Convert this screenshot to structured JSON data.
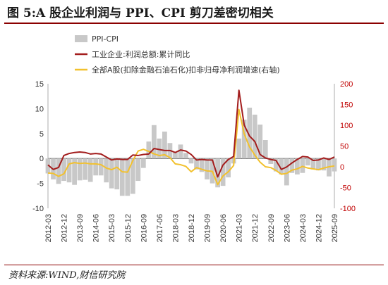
{
  "figure": {
    "title": "图 5:A 股企业利润与 PPI、CPI 剪刀差密切相关",
    "source": "资料来源:WIND,财信研究院"
  },
  "colors": {
    "ppi_cpi": "#c8c8c8",
    "industrial_profit": "#a31d1d",
    "a_share_profit": "#f2c12e",
    "left_axis": "#333333",
    "right_axis": "#c00000",
    "rule": "#8b0000"
  },
  "chart_data": {
    "type": "area",
    "x_labels": [
      "2012-03",
      "2012-12",
      "2013-09",
      "2014-06",
      "2015-03",
      "2015-12",
      "2016-09",
      "2017-06",
      "2018-03",
      "2018-12",
      "2019-09",
      "2020-06",
      "2021-03",
      "2021-12",
      "2022-09",
      "2023-06",
      "2024-03",
      "2024-12",
      "2025-09"
    ],
    "left_axis": {
      "ticks": [
        "15",
        "10",
        "5",
        "0",
        "-5",
        "-10"
      ],
      "ylim": [
        -10,
        15
      ]
    },
    "right_axis": {
      "ticks": [
        "200",
        "150",
        "100",
        "50",
        "0",
        "-50",
        "-100"
      ],
      "ylim": [
        -100,
        200
      ]
    },
    "legend_position": "top-left",
    "series": [
      {
        "name": "PPI-CPI",
        "axis": "left",
        "style": "bar",
        "points": [
          [
            "2012-03",
            -3.0
          ],
          [
            "2012-06",
            -4.2
          ],
          [
            "2012-09",
            -5.1
          ],
          [
            "2012-12",
            -4.5
          ],
          [
            "2013-03",
            -4.8
          ],
          [
            "2013-06",
            -5.3
          ],
          [
            "2013-09",
            -4.4
          ],
          [
            "2013-12",
            -4.3
          ],
          [
            "2014-03",
            -4.7
          ],
          [
            "2014-06",
            -3.4
          ],
          [
            "2014-09",
            -3.4
          ],
          [
            "2014-12",
            -4.8
          ],
          [
            "2015-03",
            -6.0
          ],
          [
            "2015-06",
            -6.2
          ],
          [
            "2015-09",
            -7.5
          ],
          [
            "2015-12",
            -7.5
          ],
          [
            "2016-03",
            -7.1
          ],
          [
            "2016-06",
            -4.5
          ],
          [
            "2016-09",
            -1.9
          ],
          [
            "2016-12",
            3.4
          ],
          [
            "2017-03",
            6.7
          ],
          [
            "2017-06",
            4.0
          ],
          [
            "2017-09",
            5.4
          ],
          [
            "2017-12",
            3.1
          ],
          [
            "2018-03",
            1.2
          ],
          [
            "2018-06",
            2.8
          ],
          [
            "2018-09",
            1.1
          ],
          [
            "2018-12",
            -1.0
          ],
          [
            "2019-03",
            -2.2
          ],
          [
            "2019-06",
            -2.7
          ],
          [
            "2019-09",
            -4.2
          ],
          [
            "2019-12",
            -5.0
          ],
          [
            "2020-03",
            -5.8
          ],
          [
            "2020-06",
            -5.5
          ],
          [
            "2020-09",
            -3.8
          ],
          [
            "2020-12",
            -1.0
          ],
          [
            "2021-03",
            4.0
          ],
          [
            "2021-06",
            7.8
          ],
          [
            "2021-09",
            10.2
          ],
          [
            "2021-12",
            8.8
          ],
          [
            "2022-03",
            6.8
          ],
          [
            "2022-06",
            3.7
          ],
          [
            "2022-09",
            -1.1
          ],
          [
            "2022-12",
            -2.6
          ],
          [
            "2023-03",
            -3.2
          ],
          [
            "2023-06",
            -5.4
          ],
          [
            "2023-09",
            -2.9
          ],
          [
            "2023-12",
            -3.2
          ],
          [
            "2024-03",
            -2.9
          ],
          [
            "2024-06",
            -1.4
          ],
          [
            "2024-09",
            -2.2
          ],
          [
            "2024-12",
            -2.4
          ],
          [
            "2025-03",
            -2.4
          ],
          [
            "2025-06",
            -3.6
          ],
          [
            "2025-09",
            -2.6
          ]
        ]
      },
      {
        "name": "工业企业:利润总额:累计同比",
        "axis": "left",
        "style": "line",
        "points": [
          [
            "2012-03",
            -1.3
          ],
          [
            "2012-06",
            -2.2
          ],
          [
            "2012-09",
            -1.8
          ],
          [
            "2012-12",
            0.6
          ],
          [
            "2013-03",
            1.0
          ],
          [
            "2013-06",
            1.2
          ],
          [
            "2013-09",
            1.3
          ],
          [
            "2013-12",
            1.2
          ],
          [
            "2014-03",
            0.9
          ],
          [
            "2014-06",
            1.0
          ],
          [
            "2014-09",
            0.9
          ],
          [
            "2014-12",
            0.3
          ],
          [
            "2015-03",
            -0.3
          ],
          [
            "2015-06",
            -0.1
          ],
          [
            "2015-09",
            -0.2
          ],
          [
            "2015-12",
            -0.2
          ],
          [
            "2016-03",
            0.7
          ],
          [
            "2016-06",
            0.6
          ],
          [
            "2016-09",
            0.8
          ],
          [
            "2016-12",
            0.9
          ],
          [
            "2017-03",
            2.0
          ],
          [
            "2017-06",
            1.8
          ],
          [
            "2017-09",
            1.6
          ],
          [
            "2017-12",
            1.6
          ],
          [
            "2018-03",
            1.2
          ],
          [
            "2018-06",
            1.7
          ],
          [
            "2018-09",
            1.5
          ],
          [
            "2018-12",
            0.8
          ],
          [
            "2019-03",
            -0.3
          ],
          [
            "2019-06",
            -0.2
          ],
          [
            "2019-09",
            -0.3
          ],
          [
            "2019-12",
            -0.3
          ],
          [
            "2020-03",
            -3.7
          ],
          [
            "2020-06",
            -1.3
          ],
          [
            "2020-09",
            -0.2
          ],
          [
            "2020-12",
            0.4
          ],
          [
            "2021-03",
            13.7
          ],
          [
            "2021-06",
            6.7
          ],
          [
            "2021-09",
            4.5
          ],
          [
            "2021-12",
            3.4
          ],
          [
            "2022-03",
            0.8
          ],
          [
            "2022-06",
            0.1
          ],
          [
            "2022-09",
            -0.2
          ],
          [
            "2022-12",
            -0.4
          ],
          [
            "2023-03",
            -2.2
          ],
          [
            "2023-06",
            -1.7
          ],
          [
            "2023-09",
            -0.9
          ],
          [
            "2023-12",
            -0.2
          ],
          [
            "2024-03",
            0.4
          ],
          [
            "2024-06",
            0.3
          ],
          [
            "2024-09",
            -0.4
          ],
          [
            "2024-12",
            -0.3
          ],
          [
            "2025-03",
            0.1
          ],
          [
            "2025-06",
            -0.2
          ],
          [
            "2025-09",
            0.3
          ]
        ]
      },
      {
        "name": "全部A股(扣除金融石油石化)扣非归母净利润增速(右轴)",
        "axis": "right",
        "style": "line",
        "points": [
          [
            "2012-03",
            -15
          ],
          [
            "2012-06",
            -16
          ],
          [
            "2012-09",
            -23
          ],
          [
            "2012-12",
            -17
          ],
          [
            "2013-03",
            7
          ],
          [
            "2013-06",
            10
          ],
          [
            "2013-09",
            8
          ],
          [
            "2013-12",
            9
          ],
          [
            "2014-03",
            7
          ],
          [
            "2014-06",
            7
          ],
          [
            "2014-09",
            5
          ],
          [
            "2014-12",
            -3
          ],
          [
            "2015-03",
            -7
          ],
          [
            "2015-06",
            -1
          ],
          [
            "2015-09",
            -12
          ],
          [
            "2015-12",
            -13
          ],
          [
            "2016-03",
            15
          ],
          [
            "2016-06",
            38
          ],
          [
            "2016-09",
            42
          ],
          [
            "2016-12",
            37
          ],
          [
            "2017-03",
            31
          ],
          [
            "2017-06",
            27
          ],
          [
            "2017-09",
            29
          ],
          [
            "2017-12",
            22
          ],
          [
            "2018-03",
            7
          ],
          [
            "2018-06",
            5
          ],
          [
            "2018-09",
            1
          ],
          [
            "2018-12",
            -12
          ],
          [
            "2019-03",
            -2
          ],
          [
            "2019-06",
            -6
          ],
          [
            "2019-09",
            -10
          ],
          [
            "2019-12",
            -11
          ],
          [
            "2020-03",
            -43
          ],
          [
            "2020-06",
            -22
          ],
          [
            "2020-09",
            -12
          ],
          [
            "2020-12",
            3
          ],
          [
            "2021-03",
            138
          ],
          [
            "2021-06",
            79
          ],
          [
            "2021-09",
            48
          ],
          [
            "2021-12",
            28
          ],
          [
            "2022-03",
            11
          ],
          [
            "2022-06",
            0
          ],
          [
            "2022-09",
            -2
          ],
          [
            "2022-12",
            -9
          ],
          [
            "2023-03",
            -18
          ],
          [
            "2023-06",
            -16
          ],
          [
            "2023-09",
            -8
          ],
          [
            "2023-12",
            -5
          ],
          [
            "2024-03",
            1
          ],
          [
            "2024-06",
            -3
          ],
          [
            "2024-09",
            -5
          ],
          [
            "2024-12",
            -7
          ],
          [
            "2025-03",
            -3
          ],
          [
            "2025-06",
            0
          ],
          [
            "2025-09",
            2
          ]
        ]
      }
    ]
  }
}
